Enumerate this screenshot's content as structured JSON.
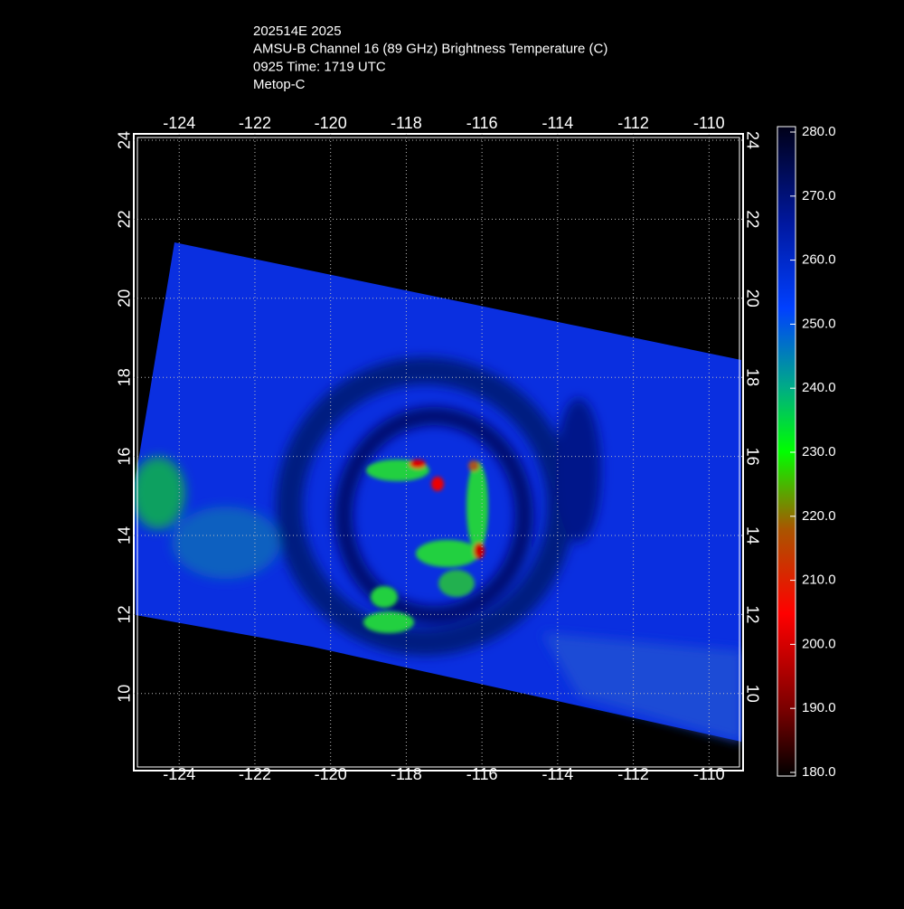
{
  "header": {
    "lines": [
      "202514E 2025",
      "AMSU-B Channel 16 (89 GHz) Brightness Temperature (C)",
      "0925 Time: 1719 UTC",
      "Metop-C"
    ]
  },
  "map": {
    "xlim": [
      -125.2,
      -109.1
    ],
    "ylim": [
      8.05,
      24.16
    ],
    "xticks": [
      -124,
      -122,
      -120,
      -118,
      -116,
      -114,
      -112,
      -110
    ],
    "yticks": [
      10,
      12,
      14,
      16,
      18,
      20,
      22,
      24
    ],
    "grid": true
  },
  "colorbar": {
    "ylim": [
      180,
      280
    ],
    "ticks": [
      {
        "value": 280,
        "label": "280.0"
      },
      {
        "value": 270,
        "label": "270.0"
      },
      {
        "value": 260,
        "label": "260.0"
      },
      {
        "value": 250,
        "label": "250.0"
      },
      {
        "value": 240,
        "label": "240.0"
      },
      {
        "value": 230,
        "label": "230.0"
      },
      {
        "value": 220,
        "label": "220.0"
      },
      {
        "value": 210,
        "label": "210.0"
      },
      {
        "value": 200,
        "label": "200.0"
      },
      {
        "value": 190,
        "label": "190.0"
      },
      {
        "value": 180,
        "label": "180.0"
      }
    ]
  }
}
